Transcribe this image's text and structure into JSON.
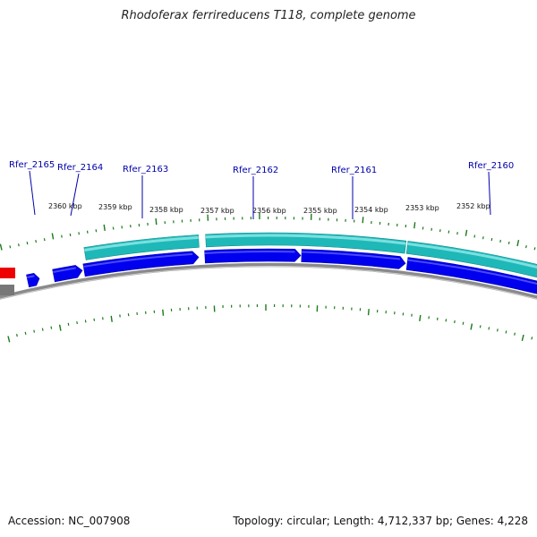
{
  "title": "Rhodoferax ferrireducens T118, complete genome",
  "footer": {
    "accession": "Accession: NC_007908",
    "summary": "Topology: circular; Length: 4,712,337 bp; Genes: 4,228"
  },
  "colors": {
    "gene_label": "#0000aa",
    "tick": "#1a7a1a",
    "cds": "#0000ee",
    "cds_highlight": "#4a4aff",
    "feature_teal": "#1fb8b8",
    "feature_teal_light": "#7ae0e0",
    "backbone": "#8a8a8a",
    "red_feature": "#ee0000",
    "gray_feature": "#777777"
  },
  "kbp_labels": [
    {
      "text": "2360 kbp"
    },
    {
      "text": "2359 kbp"
    },
    {
      "text": "2358 kbp"
    },
    {
      "text": "2357 kbp"
    },
    {
      "text": "2356 kbp"
    },
    {
      "text": "2355 kbp"
    },
    {
      "text": "2354 kbp"
    },
    {
      "text": "2353 kbp"
    },
    {
      "text": "2352 kbp"
    }
  ],
  "gene_labels": [
    {
      "text": "Rfer_2165"
    },
    {
      "text": "Rfer_2164"
    },
    {
      "text": "Rfer_2163"
    },
    {
      "text": "Rfer_2162"
    },
    {
      "text": "Rfer_2161"
    },
    {
      "text": "Rfer_2160"
    }
  ]
}
